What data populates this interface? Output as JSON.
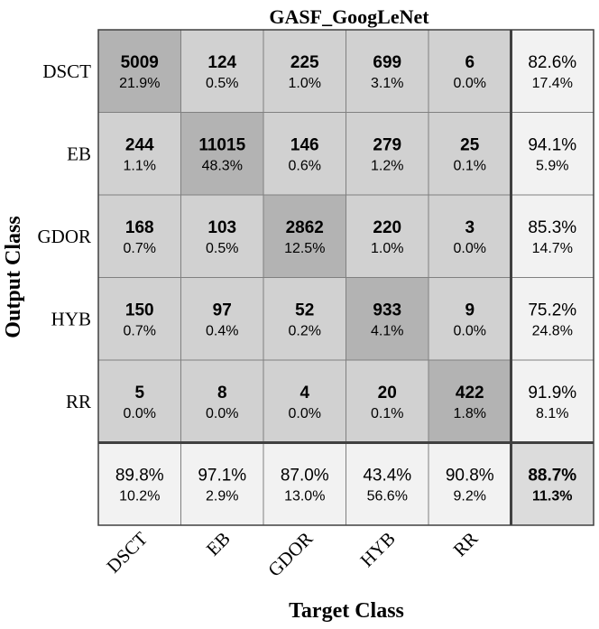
{
  "chart_data": {
    "type": "heatmap",
    "title": "GASF_GoogLeNet",
    "xlabel": "Target Class",
    "ylabel": "Output Class",
    "classes": [
      "DSCT",
      "EB",
      "GDOR",
      "HYB",
      "RR"
    ],
    "cells": [
      [
        {
          "count": "5009",
          "pct": "21.9%"
        },
        {
          "count": "124",
          "pct": "0.5%"
        },
        {
          "count": "225",
          "pct": "1.0%"
        },
        {
          "count": "699",
          "pct": "3.1%"
        },
        {
          "count": "6",
          "pct": "0.0%"
        }
      ],
      [
        {
          "count": "244",
          "pct": "1.1%"
        },
        {
          "count": "11015",
          "pct": "48.3%"
        },
        {
          "count": "146",
          "pct": "0.6%"
        },
        {
          "count": "279",
          "pct": "1.2%"
        },
        {
          "count": "25",
          "pct": "0.1%"
        }
      ],
      [
        {
          "count": "168",
          "pct": "0.7%"
        },
        {
          "count": "103",
          "pct": "0.5%"
        },
        {
          "count": "2862",
          "pct": "12.5%"
        },
        {
          "count": "220",
          "pct": "1.0%"
        },
        {
          "count": "3",
          "pct": "0.0%"
        }
      ],
      [
        {
          "count": "150",
          "pct": "0.7%"
        },
        {
          "count": "97",
          "pct": "0.4%"
        },
        {
          "count": "52",
          "pct": "0.2%"
        },
        {
          "count": "933",
          "pct": "4.1%"
        },
        {
          "count": "9",
          "pct": "0.0%"
        }
      ],
      [
        {
          "count": "5",
          "pct": "0.0%"
        },
        {
          "count": "8",
          "pct": "0.0%"
        },
        {
          "count": "4",
          "pct": "0.0%"
        },
        {
          "count": "20",
          "pct": "0.1%"
        },
        {
          "count": "422",
          "pct": "1.8%"
        }
      ]
    ],
    "row_summary": [
      {
        "correct": "82.6%",
        "error": "17.4%"
      },
      {
        "correct": "94.1%",
        "error": "5.9%"
      },
      {
        "correct": "85.3%",
        "error": "14.7%"
      },
      {
        "correct": "75.2%",
        "error": "24.8%"
      },
      {
        "correct": "91.9%",
        "error": "8.1%"
      }
    ],
    "col_summary": [
      {
        "correct": "89.8%",
        "error": "10.2%"
      },
      {
        "correct": "97.1%",
        "error": "2.9%"
      },
      {
        "correct": "87.0%",
        "error": "13.0%"
      },
      {
        "correct": "43.4%",
        "error": "56.6%"
      },
      {
        "correct": "90.8%",
        "error": "9.2%"
      }
    ],
    "overall": {
      "correct": "88.7%",
      "error": "11.3%"
    },
    "colors": {
      "diagonal": "#b3b3b3",
      "off_diagonal": "#d1d1d1",
      "summary": "#f2f2f2",
      "overall": "#dcdcdc",
      "grid": "#808080",
      "border": "#404040",
      "text": "#000000"
    }
  }
}
